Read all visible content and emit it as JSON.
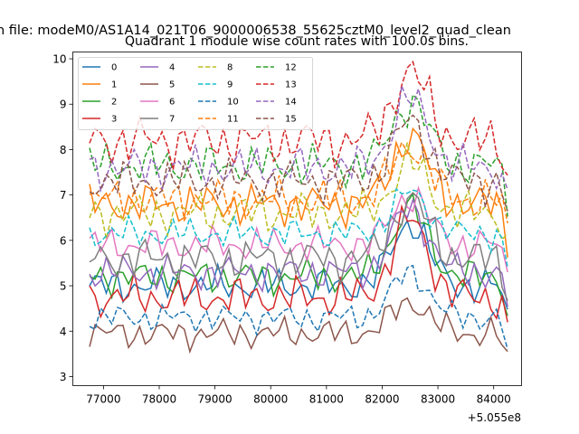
{
  "chart_data": {
    "type": "line",
    "suptitle": "n file: modeM0/AS1A14_021T06_9000006538_55625cztM0_level2_quad_clean",
    "title": "Quadrant 1 module wise count rates with 100.0s bins.",
    "xlabel": "",
    "ylabel": "",
    "x_offset_label": "+5.055e8",
    "x_start": 76750,
    "x_step": 100,
    "n_points": 76,
    "xlim": [
      76450,
      84500
    ],
    "ylim": [
      2.8,
      10.15
    ],
    "xticks": [
      77000,
      78000,
      79000,
      80000,
      81000,
      82000,
      83000,
      84000
    ],
    "xtick_labels": [
      "77000",
      "78000",
      "79000",
      "80000",
      "81000",
      "82000",
      "83000",
      "84000"
    ],
    "yticks": [
      3,
      4,
      5,
      6,
      7,
      8,
      9,
      10
    ],
    "ytick_labels": [
      "3",
      "4",
      "5",
      "6",
      "7",
      "8",
      "9",
      "10"
    ],
    "legend_position": "upper-left",
    "legend_columns": 4,
    "grid": false,
    "series": [
      {
        "name": "0",
        "color": "#1f77b4",
        "dash": "solid",
        "base": 5.0,
        "amp": 0.25,
        "peak": 1.4
      },
      {
        "name": "1",
        "color": "#ff7f0e",
        "dash": "solid",
        "base": 6.8,
        "amp": 0.3,
        "peak": 1.5
      },
      {
        "name": "2",
        "color": "#2ca02c",
        "dash": "solid",
        "base": 5.2,
        "amp": 0.25,
        "peak": 1.5
      },
      {
        "name": "3",
        "color": "#d62728",
        "dash": "solid",
        "base": 4.75,
        "amp": 0.3,
        "peak": 1.7
      },
      {
        "name": "4",
        "color": "#9467bd",
        "dash": "solid",
        "base": 5.3,
        "amp": 0.25,
        "peak": 1.4
      },
      {
        "name": "5",
        "color": "#8c564b",
        "dash": "solid",
        "base": 3.95,
        "amp": 0.22,
        "peak": 0.7
      },
      {
        "name": "6",
        "color": "#e377c2",
        "dash": "solid",
        "base": 5.9,
        "amp": 0.25,
        "peak": 1.1
      },
      {
        "name": "7",
        "color": "#7f7f7f",
        "dash": "solid",
        "base": 5.6,
        "amp": 0.3,
        "peak": 1.3
      },
      {
        "name": "8",
        "color": "#bcbd22",
        "dash": "dashed",
        "base": 6.6,
        "amp": 0.3,
        "peak": 1.1
      },
      {
        "name": "9",
        "color": "#17becf",
        "dash": "dashed",
        "base": 6.15,
        "amp": 0.22,
        "peak": 0.9
      },
      {
        "name": "10",
        "color": "#1f77b4",
        "dash": "dashed",
        "base": 4.3,
        "amp": 0.2,
        "peak": 1.0
      },
      {
        "name": "11",
        "color": "#ff7f0e",
        "dash": "dashed",
        "base": 6.9,
        "amp": 0.3,
        "peak": 1.2
      },
      {
        "name": "12",
        "color": "#2ca02c",
        "dash": "dashed",
        "base": 7.65,
        "amp": 0.3,
        "peak": 1.4
      },
      {
        "name": "13",
        "color": "#d62728",
        "dash": "dashed",
        "base": 8.2,
        "amp": 0.35,
        "peak": 1.5
      },
      {
        "name": "14",
        "color": "#9467bd",
        "dash": "dashed",
        "base": 7.6,
        "amp": 0.3,
        "peak": 1.5
      },
      {
        "name": "15",
        "color": "#8c564b",
        "dash": "dashed",
        "base": 7.3,
        "amp": 0.3,
        "peak": 1.3
      }
    ]
  }
}
